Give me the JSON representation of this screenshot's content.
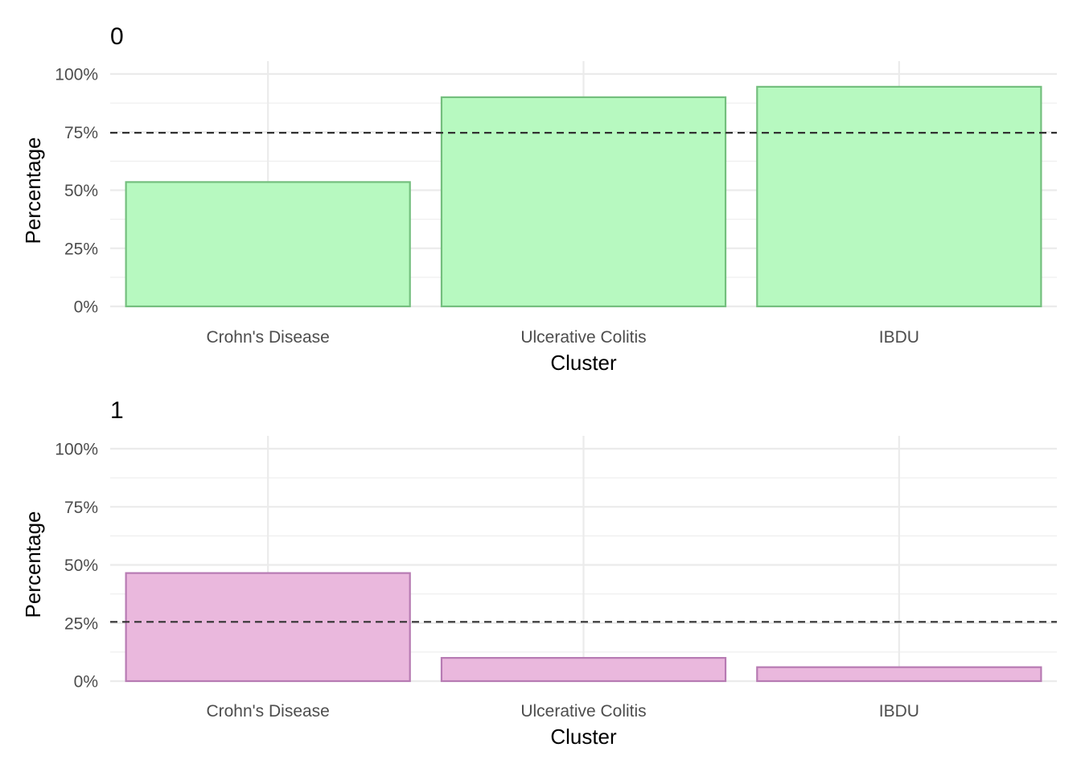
{
  "chart_data": [
    {
      "type": "bar",
      "title": "0",
      "xlabel": "Cluster",
      "ylabel": "Percentage",
      "categories": [
        "Crohn's Disease",
        "Ulcerative Colitis",
        "IBDU"
      ],
      "values": [
        53.5,
        90.0,
        94.5
      ],
      "ylim": [
        0,
        100
      ],
      "yticks": [
        0,
        25,
        50,
        75,
        100
      ],
      "ytick_labels": [
        "0%",
        "25%",
        "50%",
        "75%",
        "100%"
      ],
      "reference_line": 74.7,
      "fill_color": "#b7f9c0",
      "stroke_color": "#74bf7e",
      "grid": true
    },
    {
      "type": "bar",
      "title": "1",
      "xlabel": "Cluster",
      "ylabel": "Percentage",
      "categories": [
        "Crohn's Disease",
        "Ulcerative Colitis",
        "IBDU"
      ],
      "values": [
        46.5,
        10.0,
        6.0
      ],
      "ylim": [
        0,
        100
      ],
      "yticks": [
        0,
        25,
        50,
        75,
        100
      ],
      "ytick_labels": [
        "0%",
        "25%",
        "50%",
        "75%",
        "100%"
      ],
      "reference_line": 25.5,
      "fill_color": "#eab8dd",
      "stroke_color": "#b77bb3",
      "grid": true
    }
  ]
}
